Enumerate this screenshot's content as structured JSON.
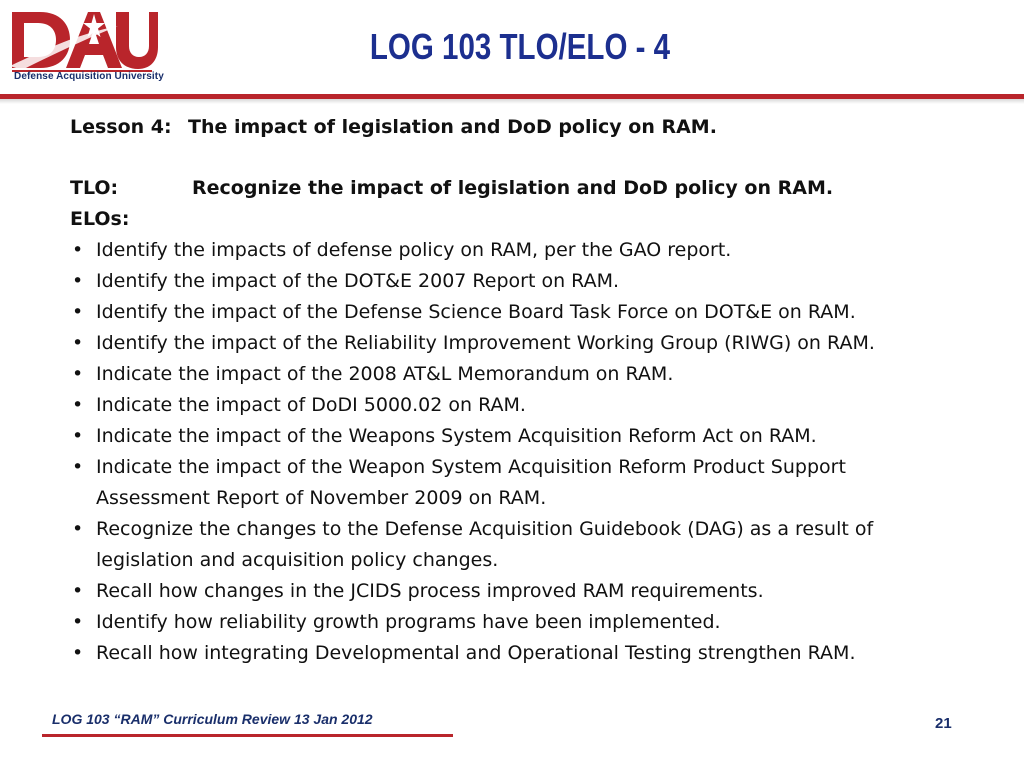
{
  "header": {
    "logo_text": "DAU",
    "logo_caption": "Defense Acquisition University",
    "title": "LOG 103 TLO/ELO - 4"
  },
  "body": {
    "lesson_label": "Lesson 4:",
    "lesson_text": "The impact of legislation and DoD policy on RAM.",
    "tlo_label": "TLO:",
    "tlo_text": "Recognize the impact of legislation and DoD policy on RAM.",
    "elos_label": "ELOs:",
    "bullet_glyph": "•",
    "elos": [
      [
        "Identify the impacts of defense policy on RAM, per the GAO report."
      ],
      [
        "Identify the impact of the DOT&E 2007 Report on RAM."
      ],
      [
        "Identify the impact of the Defense Science Board Task Force on DOT&E on RAM."
      ],
      [
        "Identify the impact of the Reliability Improvement Working Group (RIWG) on RAM."
      ],
      [
        "Indicate the impact of the 2008 AT&L Memorandum on RAM."
      ],
      [
        "Indicate the impact of DoDI 5000.02 on RAM."
      ],
      [
        "Indicate the impact of the Weapons System Acquisition Reform Act on RAM."
      ],
      [
        "Indicate the impact of the Weapon System Acquisition Reform Product Support",
        "Assessment Report of November 2009 on RAM."
      ],
      [
        "Recognize the changes to the Defense Acquisition Guidebook (DAG) as a result of",
        "legislation and acquisition policy changes."
      ],
      [
        "Recall how changes in the JCIDS process improved RAM requirements."
      ],
      [
        "Identify how reliability growth programs have been implemented."
      ],
      [
        "Recall how integrating Developmental and Operational Testing  strengthen RAM."
      ]
    ]
  },
  "footer": {
    "text": "LOG 103 “RAM” Curriculum Review 13 Jan 2012",
    "page_number": "21"
  },
  "colors": {
    "brand_red": "#b9252b",
    "brand_navy": "#1a2f6b",
    "title_blue": "#1c2f8f"
  }
}
